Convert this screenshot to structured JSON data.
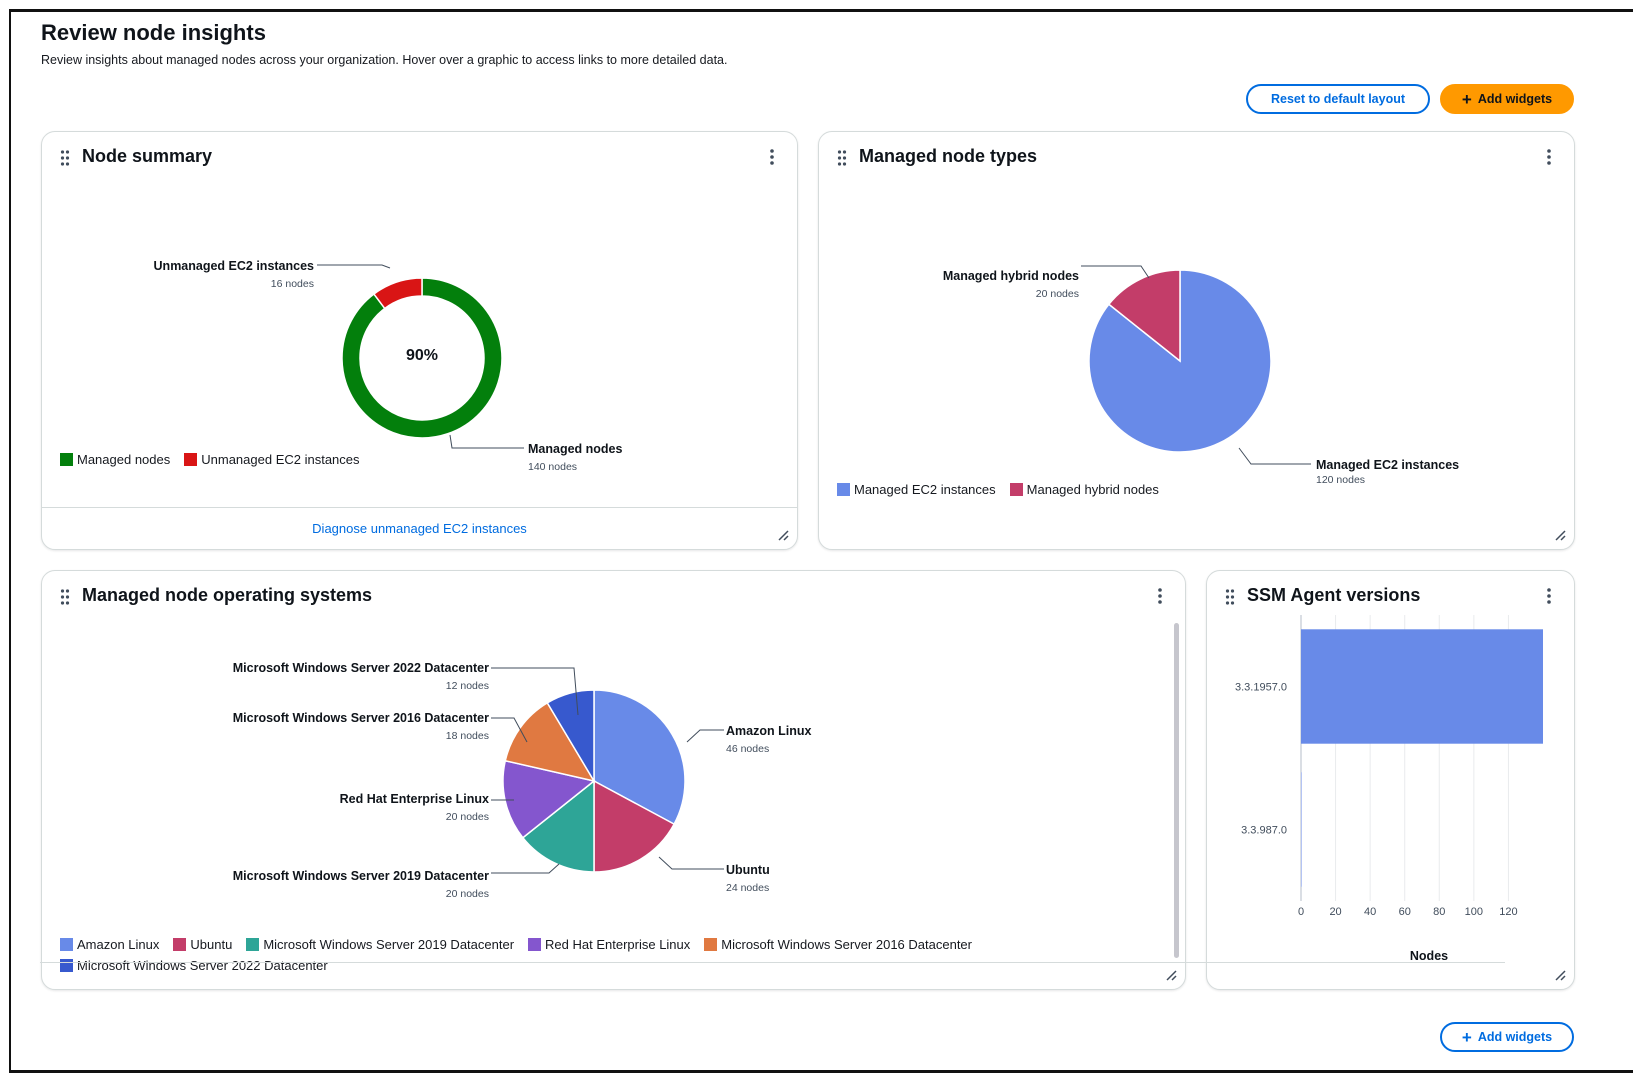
{
  "page": {
    "title": "Review node insights",
    "description": "Review insights about managed nodes across your organization. Hover over a graphic to access links to more detailed data."
  },
  "actions": {
    "reset_label": "Reset to default layout",
    "add_widgets_label": "Add widgets",
    "bottom_add_widgets_label": "Add widgets"
  },
  "colors": {
    "accent": "#006ce0",
    "primary_button": "#ff9900",
    "managed_green": "#037f0c",
    "unmanaged_red": "#d91515",
    "ec2_blue": "#688ae8",
    "hybrid_pink": "#c33d69",
    "teal": "#2ea597",
    "purple": "#8456ce",
    "orange": "#e07941",
    "dark_blue": "#3759ce"
  },
  "widgets": {
    "node_summary": {
      "title": "Node summary",
      "center_label": "90%",
      "footer_link": "Diagnose unmanaged EC2 instances",
      "chart_data": {
        "type": "pie",
        "variant": "donut",
        "slices": [
          {
            "name": "Managed nodes",
            "value": 140,
            "detail": "140 nodes",
            "color": "#037f0c"
          },
          {
            "name": "Unmanaged EC2 instances",
            "value": 16,
            "detail": "16 nodes",
            "color": "#d91515"
          }
        ],
        "legend": [
          "Managed nodes",
          "Unmanaged EC2 instances"
        ]
      }
    },
    "node_types": {
      "title": "Managed node types",
      "chart_data": {
        "type": "pie",
        "slices": [
          {
            "name": "Managed EC2 instances",
            "value": 120,
            "detail": "120 nodes",
            "color": "#688ae8"
          },
          {
            "name": "Managed hybrid nodes",
            "value": 20,
            "detail": "20 nodes",
            "color": "#c33d69"
          }
        ],
        "legend": [
          "Managed EC2 instances",
          "Managed hybrid nodes"
        ]
      }
    },
    "operating_systems": {
      "title": "Managed node operating systems",
      "chart_data": {
        "type": "pie",
        "slices": [
          {
            "name": "Amazon Linux",
            "value": 46,
            "detail": "46 nodes",
            "color": "#688ae8"
          },
          {
            "name": "Ubuntu",
            "value": 24,
            "detail": "24 nodes",
            "color": "#c33d69"
          },
          {
            "name": "Microsoft Windows Server 2019 Datacenter",
            "value": 20,
            "detail": "20 nodes",
            "color": "#2ea597"
          },
          {
            "name": "Red Hat Enterprise Linux",
            "value": 20,
            "detail": "20 nodes",
            "color": "#8456ce"
          },
          {
            "name": "Microsoft Windows Server 2016 Datacenter",
            "value": 18,
            "detail": "18 nodes",
            "color": "#e07941"
          },
          {
            "name": "Microsoft Windows Server 2022 Datacenter",
            "value": 12,
            "detail": "12 nodes",
            "color": "#3759ce"
          }
        ],
        "legend": [
          "Amazon Linux",
          "Ubuntu",
          "Microsoft Windows Server 2019 Datacenter",
          "Red Hat Enterprise Linux",
          "Microsoft Windows Server 2016 Datacenter",
          "Microsoft Windows Server 2022 Datacenter"
        ]
      }
    },
    "agent_versions": {
      "title": "SSM Agent versions",
      "chart_data": {
        "type": "bar",
        "orientation": "horizontal",
        "categories": [
          "3.3.1957.0",
          "3.3.987.0"
        ],
        "values": [
          140,
          0
        ],
        "xlabel": "Nodes",
        "xticks": [
          "0",
          "20",
          "40",
          "60",
          "80",
          "100",
          "120"
        ],
        "xlim": [
          0,
          140
        ],
        "grid": true,
        "color": "#688ae8"
      }
    }
  }
}
